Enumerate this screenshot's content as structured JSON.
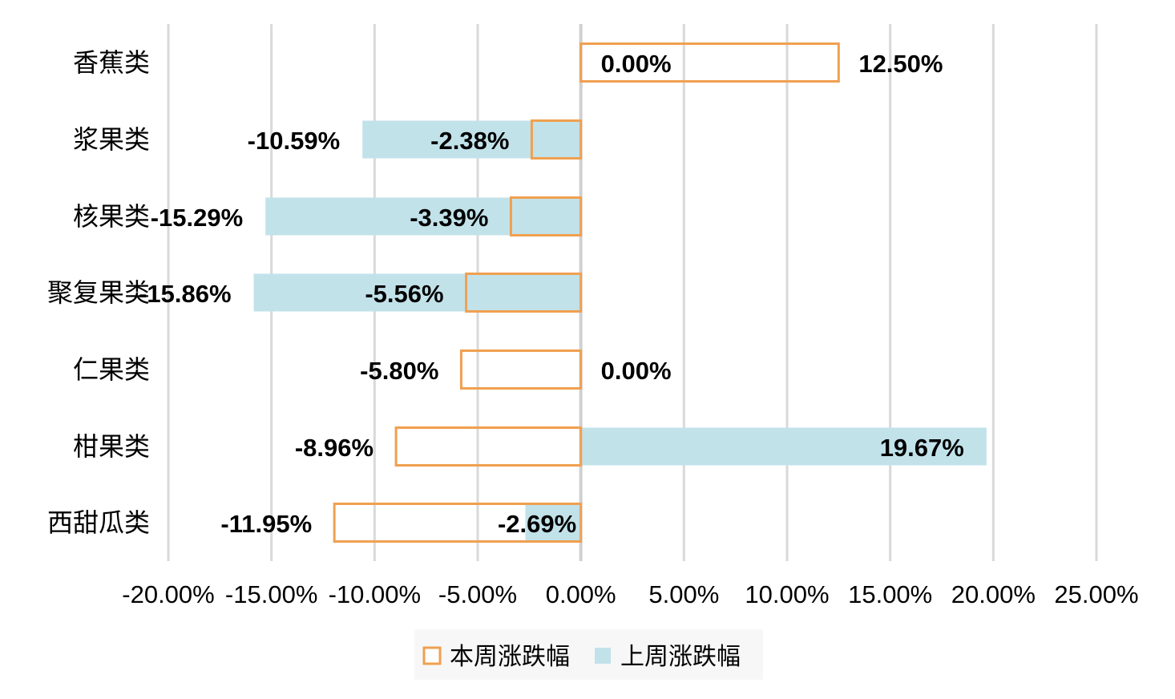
{
  "chart_data": {
    "type": "bar",
    "orientation": "horizontal",
    "categories": [
      "香蕉类",
      "浆果类",
      "核果类",
      "聚复果类",
      "仁果类",
      "柑果类",
      "西甜瓜类"
    ],
    "series": [
      {
        "name": "本周涨跌幅",
        "values": [
          12.5,
          -2.38,
          -3.39,
          -5.56,
          -5.8,
          -8.96,
          -11.95
        ],
        "labels": [
          "12.50%",
          "-2.38%",
          "-3.39%",
          "-5.56%",
          "-5.80%",
          "-8.96%",
          "-11.95%"
        ],
        "style": "outline",
        "color": "#F0A050"
      },
      {
        "name": "上周涨跌幅",
        "values": [
          0.0,
          -10.59,
          -15.29,
          -15.86,
          0.0,
          19.67,
          -2.69
        ],
        "labels": [
          "0.00%",
          "-10.59%",
          "-15.29%",
          "-15.86%",
          "0.00%",
          "19.67%",
          "-2.69%"
        ],
        "style": "fill",
        "color": "#C2E2EA"
      }
    ],
    "xlim": [
      -20,
      25
    ],
    "x_ticks": [
      -20,
      -15,
      -10,
      -5,
      0,
      5,
      10,
      15,
      20,
      25
    ],
    "x_tick_labels": [
      "-20.00%",
      "-15.00%",
      "-10.00%",
      "-5.00%",
      "0.00%",
      "5.00%",
      "10.00%",
      "15.00%",
      "20.00%",
      "25.00%"
    ],
    "grid": true,
    "legend_position": "bottom",
    "title": "",
    "xlabel": "",
    "ylabel": ""
  }
}
